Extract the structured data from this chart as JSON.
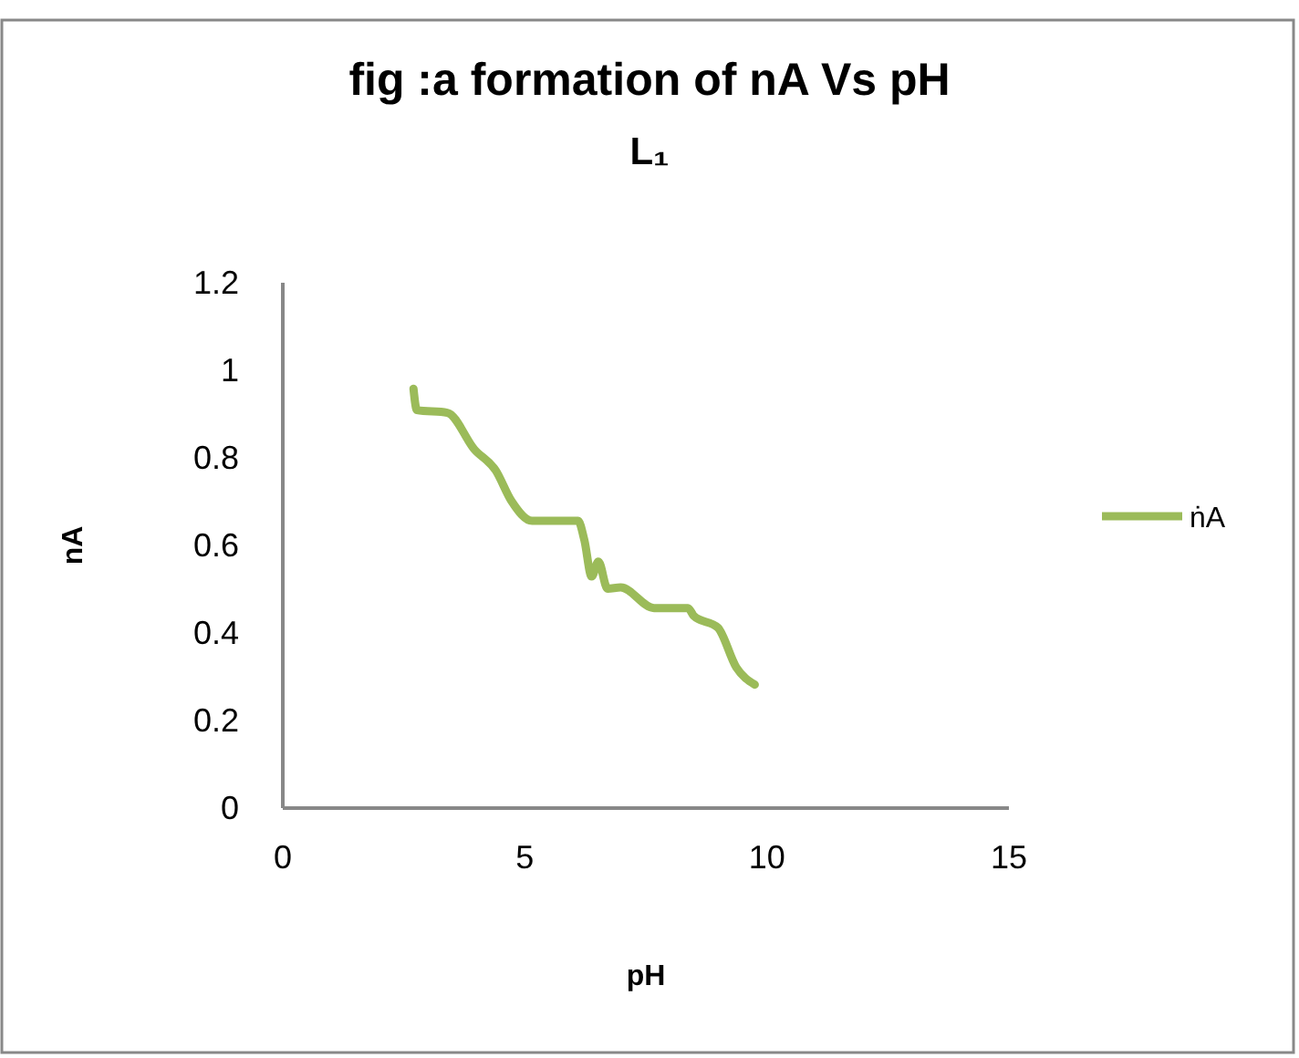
{
  "chart_data": {
    "type": "line",
    "title": "fig :a formation of nA Vs pH",
    "subtitle": "L₁",
    "xlabel": "pH",
    "ylabel": "nA",
    "xlim": [
      0,
      15
    ],
    "xticks": [
      0,
      5,
      10,
      15
    ],
    "ylim": [
      0,
      1.2
    ],
    "yticks": [
      0,
      0.2,
      0.4,
      0.6,
      0.8,
      1,
      1.2
    ],
    "grid": false,
    "legend": "right",
    "marker": "none",
    "line_style": "solid",
    "series": [
      {
        "name": "ṅA",
        "color": "#9bbb59",
        "x": [
          2.7,
          2.77,
          3.4,
          3.96,
          4.4,
          4.72,
          5.15,
          6.1,
          6.23,
          6.38,
          6.52,
          6.71,
          6.98,
          7.67,
          8.37,
          8.49,
          8.99,
          9.37,
          9.75
        ],
        "values": [
          0.958,
          0.909,
          0.903,
          0.819,
          0.771,
          0.702,
          0.656,
          0.656,
          0.612,
          0.529,
          0.563,
          0.501,
          0.504,
          0.457,
          0.457,
          0.439,
          0.412,
          0.321,
          0.282
        ]
      }
    ]
  }
}
